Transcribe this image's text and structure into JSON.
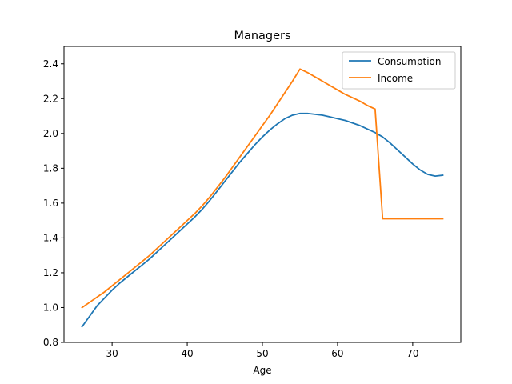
{
  "chart_data": {
    "type": "line",
    "title": "Managers",
    "xlabel": "Age",
    "ylabel": "",
    "xlim": [
      23.6,
      76.4
    ],
    "ylim": [
      0.8,
      2.5
    ],
    "xticks": [
      30,
      40,
      50,
      60,
      70
    ],
    "yticks": [
      0.8,
      1.0,
      1.2,
      1.4,
      1.6,
      1.8,
      2.0,
      2.2,
      2.4
    ],
    "grid": false,
    "legend_position": "top-right",
    "series": [
      {
        "name": "Consumption",
        "color": "#1f77b4",
        "x": [
          26,
          27,
          28,
          29,
          30,
          31,
          32,
          33,
          34,
          35,
          36,
          37,
          38,
          39,
          40,
          41,
          42,
          43,
          44,
          45,
          46,
          47,
          48,
          49,
          50,
          51,
          52,
          53,
          54,
          55,
          56,
          57,
          58,
          59,
          60,
          61,
          62,
          63,
          64,
          65,
          66,
          67,
          68,
          69,
          70,
          71,
          72,
          73,
          74
        ],
        "y": [
          0.89,
          0.95,
          1.01,
          1.055,
          1.1,
          1.14,
          1.175,
          1.21,
          1.245,
          1.28,
          1.32,
          1.36,
          1.4,
          1.44,
          1.48,
          1.52,
          1.565,
          1.615,
          1.67,
          1.725,
          1.78,
          1.835,
          1.885,
          1.935,
          1.98,
          2.02,
          2.055,
          2.085,
          2.105,
          2.115,
          2.115,
          2.11,
          2.105,
          2.095,
          2.085,
          2.075,
          2.06,
          2.045,
          2.025,
          2.005,
          1.98,
          1.945,
          1.905,
          1.865,
          1.825,
          1.79,
          1.765,
          1.755,
          1.76
        ]
      },
      {
        "name": "Income",
        "color": "#ff7f0e",
        "x": [
          26,
          27,
          28,
          29,
          30,
          31,
          32,
          33,
          34,
          35,
          36,
          37,
          38,
          39,
          40,
          41,
          42,
          43,
          44,
          45,
          46,
          47,
          48,
          49,
          50,
          51,
          52,
          53,
          54,
          55,
          56,
          57,
          58,
          59,
          60,
          61,
          62,
          63,
          64,
          65,
          66,
          67,
          68,
          69,
          70,
          71,
          72,
          73,
          74
        ],
        "y": [
          1.0,
          1.03,
          1.06,
          1.09,
          1.125,
          1.16,
          1.195,
          1.23,
          1.265,
          1.3,
          1.34,
          1.38,
          1.42,
          1.46,
          1.5,
          1.54,
          1.585,
          1.635,
          1.69,
          1.745,
          1.805,
          1.865,
          1.925,
          1.985,
          2.045,
          2.105,
          2.17,
          2.235,
          2.3,
          2.37,
          2.35,
          2.325,
          2.3,
          2.275,
          2.25,
          2.225,
          2.205,
          2.185,
          2.16,
          2.14,
          1.51,
          1.51,
          1.51,
          1.51,
          1.51,
          1.51,
          1.51,
          1.51,
          1.51
        ]
      }
    ]
  }
}
